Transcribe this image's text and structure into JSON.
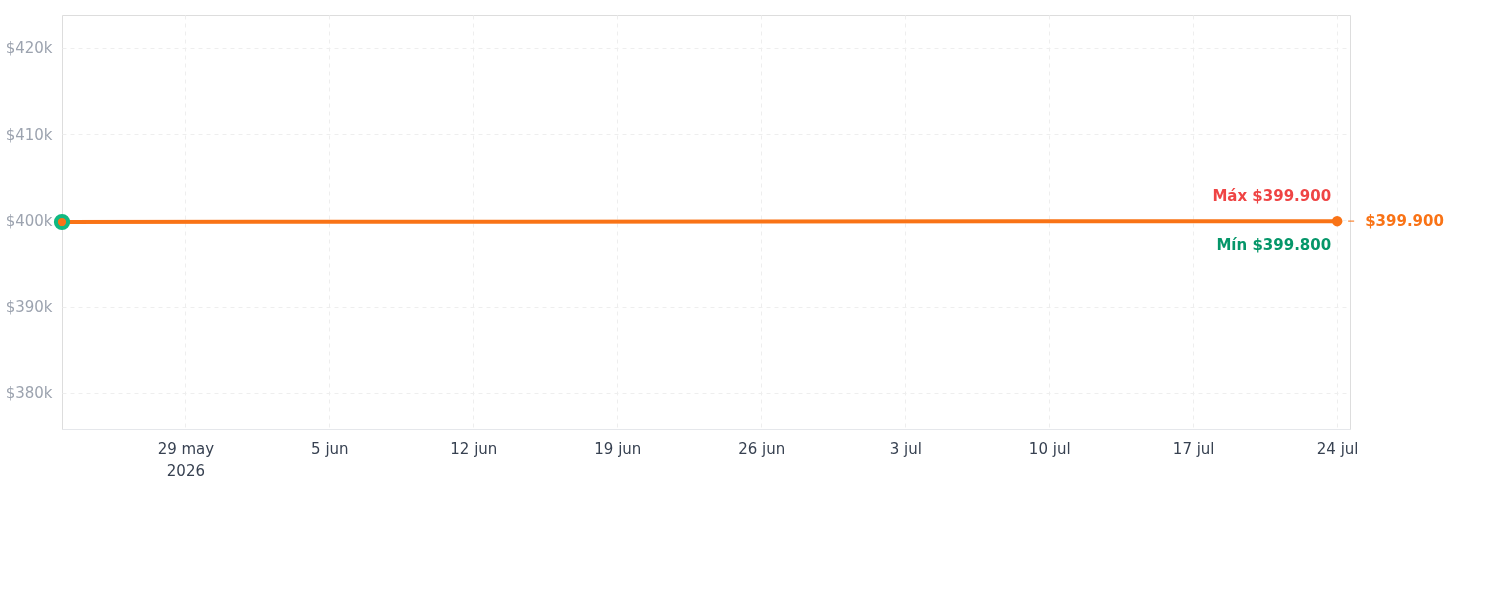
{
  "chart_data": {
    "type": "line",
    "x": [
      "2026-05-23",
      "2026-07-24"
    ],
    "series": [
      {
        "color": "#f97316",
        "values": [
          399800,
          399900
        ]
      }
    ],
    "xlim": [
      "2026-05-23",
      "2026-07-24T15:00"
    ],
    "xticks": [
      {
        "value": "2026-05-29",
        "label": "29 may\n2026"
      },
      {
        "value": "2026-06-05",
        "label": "5 jun"
      },
      {
        "value": "2026-06-12",
        "label": "12 jun"
      },
      {
        "value": "2026-06-19",
        "label": "19 jun"
      },
      {
        "value": "2026-06-26",
        "label": "26 jun"
      },
      {
        "value": "2026-07-03",
        "label": "3 jul"
      },
      {
        "value": "2026-07-10",
        "label": "10 jul"
      },
      {
        "value": "2026-07-17",
        "label": "17 jul"
      },
      {
        "value": "2026-07-24",
        "label": "24 jul"
      }
    ],
    "ylim": [
      375800,
      423800
    ],
    "yticks": [
      {
        "value": 380000,
        "label": "$380k"
      },
      {
        "value": 390000,
        "label": "$390k"
      },
      {
        "value": 400000,
        "label": "$400k"
      },
      {
        "value": 410000,
        "label": "$410k"
      },
      {
        "value": 420000,
        "label": "$420k"
      }
    ],
    "annotations": [
      "Máx $399.900",
      "Mín $399.800",
      "$399.900"
    ],
    "grid": true,
    "marker": "circle",
    "line_style": "solid"
  }
}
